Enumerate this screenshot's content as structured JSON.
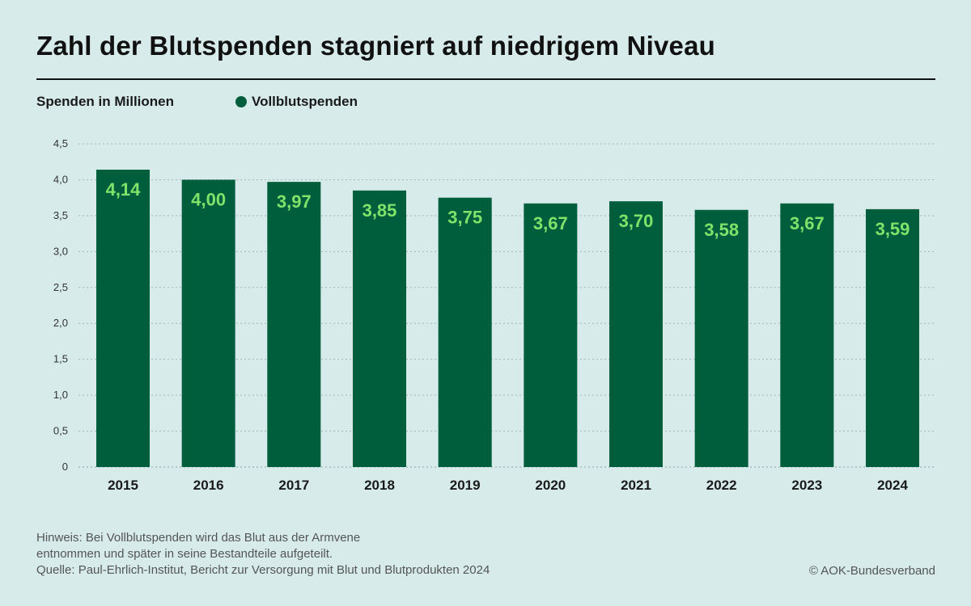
{
  "title": "Zahl der Blutspenden stagniert auf niedrigem Niveau",
  "colors": {
    "background": "#d6ebea",
    "bar": "#005e3c",
    "bar_label": "#7fe36a",
    "grid": "#9fb8b6",
    "text": "#1a1a1a"
  },
  "footer": {
    "note_line1": "Hinweis: Bei Vollblutspenden wird das Blut aus der Armvene",
    "note_line2": "entnommen und später in seine Bestandteile aufgeteilt.",
    "source": "Quelle: Paul-Ehrlich-Institut, Bericht zur Versorgung mit Blut und Blutprodukten 2024",
    "credit": "© AOK-Bundesverband"
  },
  "chart_data": {
    "type": "bar",
    "title": "Zahl der Blutspenden stagniert auf niedrigem Niveau",
    "xlabel": "",
    "ylabel": "Spenden in Millionen",
    "categories": [
      "2015",
      "2016",
      "2017",
      "2018",
      "2019",
      "2020",
      "2021",
      "2022",
      "2023",
      "2024"
    ],
    "series": [
      {
        "name": "Vollblutspenden",
        "values": [
          4.14,
          4.0,
          3.97,
          3.85,
          3.75,
          3.67,
          3.7,
          3.58,
          3.67,
          3.59
        ],
        "value_labels": [
          "4,14",
          "4,00",
          "3,97",
          "3,85",
          "3,75",
          "3,67",
          "3,70",
          "3,58",
          "3,67",
          "3,59"
        ]
      }
    ],
    "ylim": [
      0,
      4.5
    ],
    "yticks": [
      0,
      0.5,
      1.0,
      1.5,
      2.0,
      2.5,
      3.0,
      3.5,
      4.0,
      4.5
    ],
    "ytick_labels": [
      "0",
      "0,5",
      "1,0",
      "1,5",
      "2,0",
      "2,5",
      "3,0",
      "3,5",
      "4,0",
      "4,5"
    ],
    "grid": true,
    "grid_style": "dotted",
    "legend_position": "top-left",
    "data_labels": "inside-top"
  }
}
